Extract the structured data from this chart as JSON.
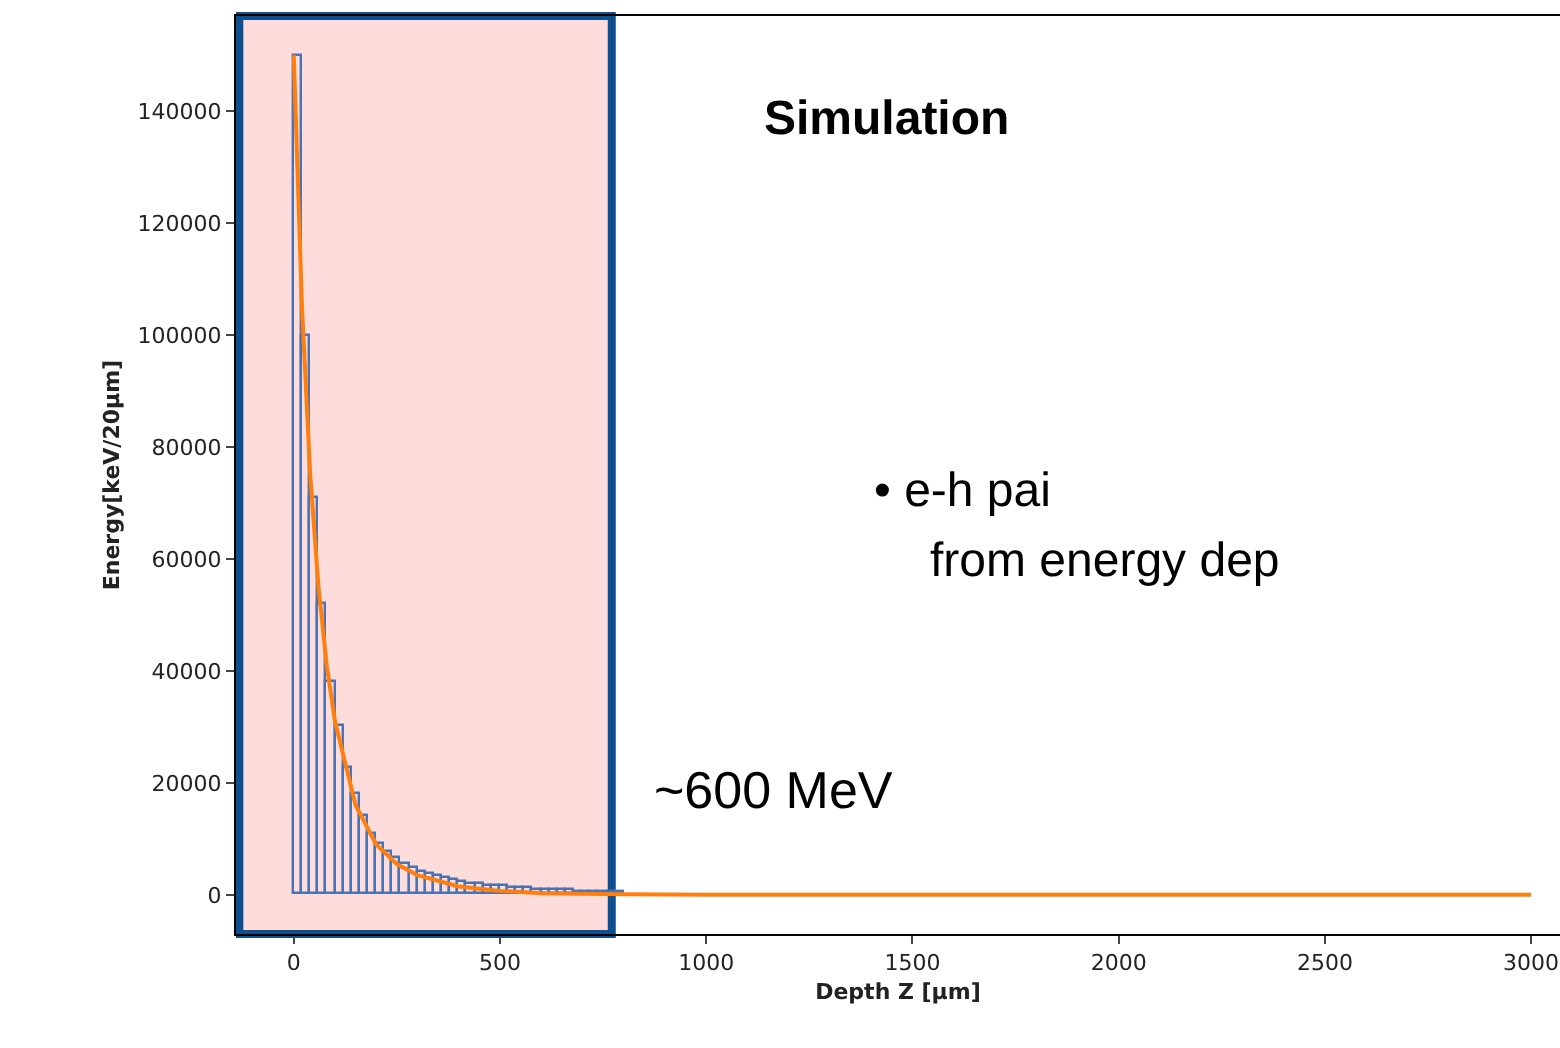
{
  "chart_data": {
    "type": "histogram",
    "xlabel": "Depth Z [μm]",
    "ylabel": "Energy[keV/20μm]",
    "xlim": [
      -140,
      3070
    ],
    "xticks": [
      0,
      500,
      1000,
      1500,
      2000,
      2500,
      3000
    ],
    "ylim": [
      -7000,
      157000
    ],
    "yticks": [
      0,
      20000,
      40000,
      60000,
      80000,
      100000,
      120000,
      140000
    ],
    "grid": false,
    "legend": false,
    "series": [
      {
        "color": "#4c72b0",
        "bins": [
          0,
          20,
          40,
          60,
          80,
          100,
          120,
          140,
          160,
          180,
          200,
          220,
          240,
          260,
          280,
          300,
          320,
          340,
          360,
          380,
          400,
          420,
          440,
          460,
          480,
          500,
          520,
          540,
          560,
          580,
          600,
          620,
          640,
          660,
          680,
          700,
          720,
          740,
          760,
          780,
          800
        ],
        "values": [
          150000,
          100000,
          71000,
          52000,
          38000,
          30000,
          22500,
          18000,
          14000,
          11000,
          9000,
          7500,
          6500,
          5500,
          4800,
          4200,
          3700,
          3300,
          2900,
          2600,
          2300,
          2100,
          1900,
          1700,
          1500,
          1400,
          1300,
          1200,
          1100,
          1000,
          900,
          800,
          700,
          700,
          600,
          600,
          500,
          500,
          400,
          400
        ]
      },
      {
        "type": "line",
        "color": "#ff7f0e",
        "x": [
          0,
          20,
          40,
          60,
          80,
          100,
          150,
          200,
          250,
          300,
          400,
          500,
          600,
          800,
          1000,
          3000
        ],
        "values": [
          150000,
          105000,
          75000,
          55000,
          41000,
          31000,
          16000,
          9000,
          5500,
          3500,
          1500,
          700,
          300,
          100,
          0,
          0
        ]
      }
    ],
    "bands": [
      {
        "axis": "x",
        "from": -132,
        "to": 771,
        "color": "#fddcdc"
      }
    ],
    "annotations": [
      "Simulation",
      "• e-h pai",
      "from energy dep",
      "~600 MeV"
    ]
  }
}
